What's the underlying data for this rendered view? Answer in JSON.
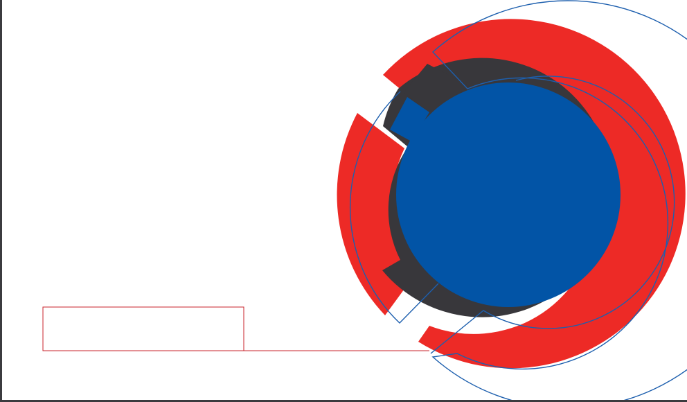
{
  "colors": {
    "red": "#ed2a26",
    "dark": "#38373b",
    "blue": "#0254a6",
    "outline_blue": "#1d5fae",
    "frame_red": "#c9232b",
    "edge": "#3b3b3f",
    "background": "#ffffff"
  },
  "shapes": [
    "red-ring",
    "dark-ring",
    "blue-disc",
    "large-outline-circle",
    "inner-outline-circle",
    "empty-text-frame"
  ]
}
